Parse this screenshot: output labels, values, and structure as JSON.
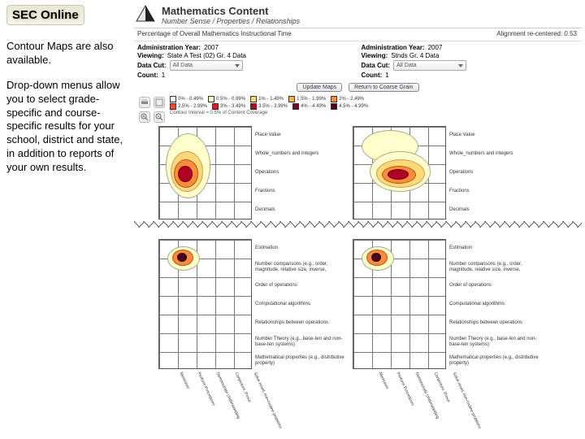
{
  "left": {
    "title": "SEC Online",
    "p1": "Contour Maps are also available.",
    "p2": "Drop-down menus allow you to select grade-specific and course-specific results for your school, district and state, in addition to reports of your own results."
  },
  "header": {
    "title": "Mathematics Content",
    "sub": "Number Sense / Properties / Relationships",
    "line2_left": "Percentage of Overall Mathematics Instructional Time",
    "line2_right": "Alignment re-centered: 0.53"
  },
  "panelL": {
    "year_lab": "Administration Year:",
    "year": "2007",
    "view_lab": "Viewing:",
    "view": "State A Test (02) Gr. 4 Data",
    "cut_lab": "Data Cut:",
    "cut": "All Data",
    "count_lab": "Count:",
    "count": "1"
  },
  "panelR": {
    "year_lab": "Administration Year:",
    "year": "2007",
    "view_lab": "Viewing:",
    "view": "Stnds Gr. 4 Data",
    "cut_lab": "Data Cut:",
    "cut": "All Data",
    "count_lab": "Count:",
    "count": "1"
  },
  "buttons": {
    "update": "Update Maps",
    "return": "Return to Coarse Grain"
  },
  "legend": {
    "bands": [
      {
        "c": "#ffffff",
        "t": "0% - 0.49%"
      },
      {
        "c": "#ffffcc",
        "t": "0.5% - 0.99%"
      },
      {
        "c": "#fed976",
        "t": "1% - 1.49%"
      },
      {
        "c": "#feb24c",
        "t": "1.5% - 1.99%"
      },
      {
        "c": "#fd8d3c",
        "t": "2% - 2.49%"
      },
      {
        "c": "#fc4e2a",
        "t": "2.5% - 2.99%"
      },
      {
        "c": "#e31a1c",
        "t": "3% - 3.49%"
      },
      {
        "c": "#b10026",
        "t": "3.5% - 3.99%"
      },
      {
        "c": "#800026",
        "t": "4% - 4.49%"
      },
      {
        "c": "#4d0019",
        "t": "4.5% - 4.99%"
      }
    ],
    "note": "Contour Interval = 0.5% of Content Coverage"
  },
  "rows_upper": [
    "Place Value",
    "Whole_numbers and integers",
    "Operations",
    "Fractions",
    "Decimals"
  ],
  "rows_lower": [
    "Estimation",
    "Number comparisons (e.g., order, magnitude, relative size, inverse,",
    "Order of operations",
    "Computational algorithms",
    "Relationships between operations",
    "Number Theory (e.g., base-ten and non-base-ten systems)",
    "Mathematical properties (e.g., distributive property)"
  ],
  "cols": [
    "Memorize",
    "Perform Procedures",
    "Demonstrate Understanding",
    "Conjecture, Prove",
    "Solve novel, non-routine problems"
  ],
  "colors": {
    "c1": "#ffffcc",
    "c2": "#fed976",
    "c3": "#feb24c",
    "c4": "#fc4e2a",
    "c5": "#b10026",
    "c6": "#4d0019"
  }
}
